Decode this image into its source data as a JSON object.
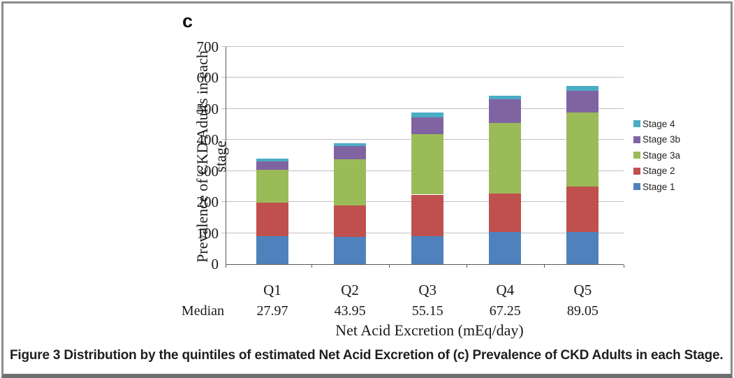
{
  "panel_label": "c",
  "caption": {
    "prefix": "Figure 3",
    "text": " Distribution by the quintiles of estimated Net Acid Excretion of (c) Prevalence of CKD Adults in each Stage."
  },
  "chart_data": {
    "type": "bar",
    "stacked": true,
    "categories": [
      "Q1",
      "Q2",
      "Q3",
      "Q4",
      "Q5"
    ],
    "series": [
      {
        "name": "Stage 1",
        "color": "#4F81BD",
        "values": [
          90,
          88,
          91,
          104,
          103
        ]
      },
      {
        "name": "Stage 2",
        "color": "#C0504D",
        "values": [
          107,
          100,
          133,
          124,
          147
        ]
      },
      {
        "name": "Stage 3a",
        "color": "#9BBB59",
        "values": [
          108,
          150,
          194,
          226,
          238
        ]
      },
      {
        "name": "Stage 3b",
        "color": "#8064A2",
        "values": [
          25,
          42,
          55,
          78,
          70
        ]
      },
      {
        "name": "Stage 4",
        "color": "#4BACC6",
        "values": [
          10,
          10,
          16,
          11,
          15
        ]
      }
    ],
    "totals": [
      340,
      390,
      489,
      543,
      573
    ],
    "ylabel": "Prevalence of CKD Adults in each stage",
    "xlabel": "Net Acid Excretion (mEq/day)",
    "ylim": [
      0,
      700
    ],
    "ytick_step": 100,
    "grid": "horizontal",
    "legend_position": "right",
    "legend_order": [
      "Stage 4",
      "Stage 3b",
      "Stage 3a",
      "Stage 2",
      "Stage 1"
    ],
    "median_row": {
      "label": "Median",
      "values": [
        "27.97",
        "43.95",
        "55.15",
        "67.25",
        "89.05"
      ]
    }
  },
  "colors": {
    "gridline": "#bfbfbf",
    "axis": "#595959",
    "frame_border": "#8c8c8c",
    "frame_bottom": "#6f6f6f",
    "text": "#1a1a1a"
  }
}
